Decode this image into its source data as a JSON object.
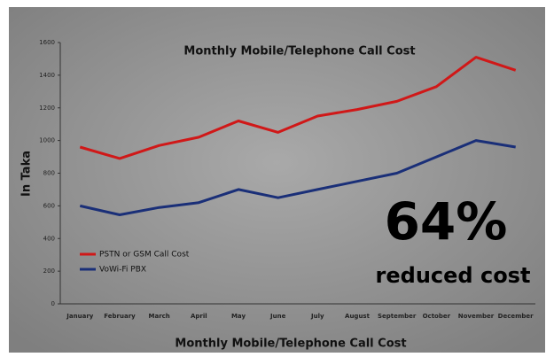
{
  "chart_data": {
    "type": "line",
    "title": "Monthly Mobile/Telephone Call Cost",
    "x_label": "Monthly Mobile/Telephone Call Cost",
    "y_label": "In Taka",
    "categories": [
      "January",
      "February",
      "March",
      "April",
      "May",
      "June",
      "July",
      "August",
      "September",
      "October",
      "November",
      "December"
    ],
    "series": [
      {
        "name": "PSTN or GSM Call Cost",
        "color": "#d01818",
        "values": [
          960,
          890,
          970,
          1020,
          1120,
          1050,
          1150,
          1190,
          1240,
          1330,
          1510,
          1430
        ]
      },
      {
        "name": "VoWi-Fi PBX",
        "color": "#1a2f78",
        "values": [
          600,
          545,
          590,
          620,
          700,
          650,
          700,
          750,
          800,
          900,
          1000,
          960
        ]
      }
    ],
    "ylim": [
      0,
      1600
    ],
    "yticks": [
      0,
      200,
      400,
      600,
      800,
      1000,
      1200,
      1400,
      1600
    ],
    "annotations": [
      "64%",
      "reduced cost"
    ],
    "legend_position": "left"
  }
}
